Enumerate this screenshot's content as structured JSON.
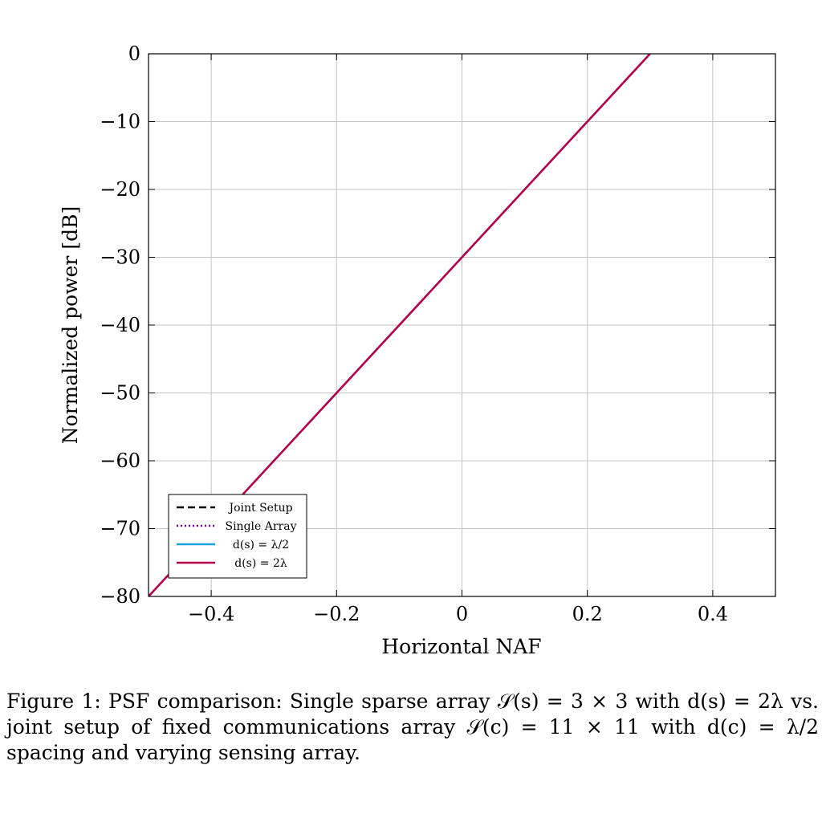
{
  "chart_data": {
    "type": "line",
    "xlabel": "Horizontal NAF",
    "ylabel": "Normalized power [dB]",
    "xlim": [
      -0.5,
      0.5
    ],
    "ylim": [
      -80,
      0
    ],
    "xticks": [
      -0.4,
      -0.2,
      0,
      0.2,
      0.4
    ],
    "xtick_labels": [
      "−0.4",
      "−0.2",
      "0",
      "0.2",
      "0.4"
    ],
    "yticks": [
      0,
      -10,
      -20,
      -30,
      -40,
      -50,
      -60,
      -70,
      -80
    ],
    "ytick_labels": [
      "0",
      "−10",
      "−20",
      "−30",
      "−40",
      "−50",
      "−60",
      "−70",
      "−80"
    ],
    "grid": true,
    "legend_position": "bottom-left",
    "series": [
      {
        "name": "Joint Setup",
        "color": "#000000",
        "style": "dashed",
        "x": [],
        "y": []
      },
      {
        "name": "Single Array",
        "color": "#7a00a8",
        "style": "dotted",
        "x": [],
        "y": []
      },
      {
        "name": "d(s) = λ/2",
        "color": "#1aa3e0",
        "style": "solid",
        "x": [
          -0.5,
          0.3
        ],
        "y": [
          -80,
          0
        ]
      },
      {
        "name": "d(s) = 2λ",
        "color": "#b5004a",
        "style": "solid",
        "x": [
          -0.5,
          0.3
        ],
        "y": [
          -80,
          0
        ]
      }
    ]
  },
  "caption": {
    "label": "Figure 1:",
    "text": "PSF comparison: Single sparse array 𝒮(s) = 3 × 3 with d(s) = 2λ vs. joint setup of fixed communications array 𝒮(c) = 11 × 11 with d(c) = λ/2 spacing and varying sensing array."
  }
}
